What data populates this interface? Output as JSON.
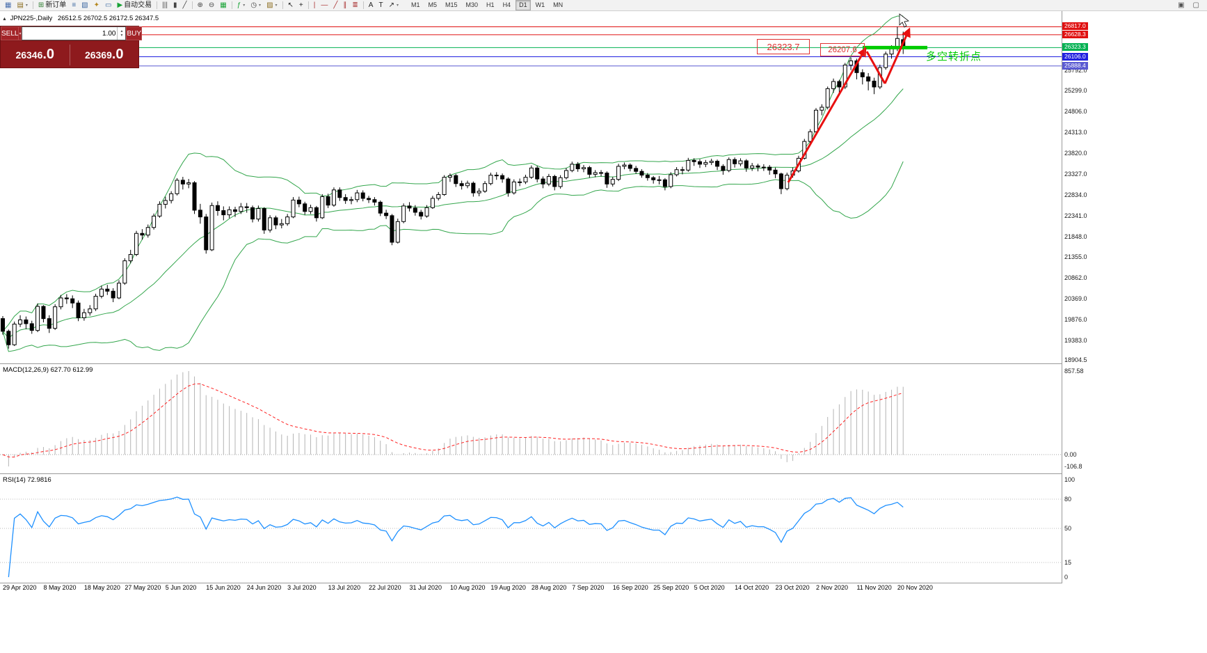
{
  "toolbar": {
    "items": [
      {
        "name": "new-chart",
        "glyph": "▦",
        "color": "#4a6fae"
      },
      {
        "name": "profiles",
        "glyph": "▤",
        "color": "#8c6d1f",
        "caret": true
      },
      {
        "type": "sep"
      },
      {
        "name": "new-order",
        "glyph": "⊞",
        "color": "#2f7d32",
        "label": "新订单"
      },
      {
        "name": "market-watch",
        "glyph": "≡",
        "color": "#3b66a0"
      },
      {
        "name": "data-window",
        "glyph": "▧",
        "color": "#3b66a0"
      },
      {
        "name": "navigator",
        "glyph": "✦",
        "color": "#b5871f"
      },
      {
        "name": "terminal",
        "glyph": "▭",
        "color": "#3b66a0"
      },
      {
        "name": "autotrading",
        "glyph": "▶",
        "color": "#18a335",
        "label": "自动交易"
      },
      {
        "type": "sep"
      },
      {
        "name": "chart-bars",
        "glyph": "|||",
        "color": "#444"
      },
      {
        "name": "chart-candles",
        "glyph": "▮",
        "color": "#444"
      },
      {
        "name": "chart-line",
        "glyph": "╱",
        "color": "#444"
      },
      {
        "type": "sep"
      },
      {
        "name": "zoom-in",
        "glyph": "⊕",
        "color": "#444"
      },
      {
        "name": "zoom-out",
        "glyph": "⊖",
        "color": "#444"
      },
      {
        "name": "tile-windows",
        "glyph": "▦",
        "color": "#18a335"
      },
      {
        "type": "sep"
      },
      {
        "name": "indicators",
        "glyph": "ƒ",
        "color": "#18a335",
        "caret": true
      },
      {
        "name": "periods",
        "glyph": "◷",
        "color": "#444",
        "caret": true
      },
      {
        "name": "templates",
        "glyph": "▨",
        "color": "#8c6d1f",
        "caret": true
      },
      {
        "type": "sep"
      },
      {
        "name": "cursor",
        "glyph": "↖",
        "color": "#222"
      },
      {
        "name": "crosshair",
        "glyph": "+",
        "color": "#222"
      },
      {
        "type": "sep"
      },
      {
        "name": "vertical-line",
        "glyph": "|",
        "color": "#a33"
      },
      {
        "name": "horizontal-line",
        "glyph": "—",
        "color": "#a33"
      },
      {
        "name": "trendline",
        "glyph": "╱",
        "color": "#a33"
      },
      {
        "name": "equidistant-channel",
        "glyph": "∥",
        "color": "#a33"
      },
      {
        "name": "fibonacci",
        "glyph": "≣",
        "color": "#a33"
      },
      {
        "type": "sep"
      },
      {
        "name": "text",
        "glyph": "A",
        "color": "#222"
      },
      {
        "name": "text-label",
        "glyph": "T",
        "color": "#222"
      },
      {
        "name": "arrows-tool",
        "glyph": "↗",
        "color": "#222",
        "caret": true
      }
    ],
    "timeframes": {
      "list": [
        "M1",
        "M5",
        "M15",
        "M30",
        "H1",
        "H4",
        "D1",
        "W1",
        "MN"
      ],
      "active": "D1"
    },
    "right_items": [
      {
        "name": "dock-window",
        "glyph": "▣",
        "color": "#555"
      },
      {
        "name": "new-window",
        "glyph": "▢",
        "color": "#555"
      }
    ]
  },
  "symbol_bar": {
    "marker": "▲",
    "title": "JPN225-,Daily",
    "ohlc": "26512.5 26702.5 26172.5 26347.5"
  },
  "trade_panel": {
    "sell_label": "SELL",
    "buy_label": "BUY",
    "volume": "1.00",
    "sell_price": "26346",
    "sell_price_dec": ".0",
    "buy_price": "26369",
    "buy_price_dec": ".0"
  },
  "macd": {
    "label": "MACD(12,26,9) 627.70 612.99",
    "fast": 12,
    "slow": 26,
    "signal": 9,
    "max_label": "857.58",
    "zero_label": "0.00",
    "min_label": "-106.8"
  },
  "rsi": {
    "label": "RSI(14) 72.9816",
    "period": 14,
    "levels": [
      "100",
      "80",
      "50",
      "15",
      "0"
    ],
    "level_values": [
      100,
      80,
      50,
      15,
      0
    ],
    "dashed_levels": [
      80,
      50,
      15
    ]
  },
  "colors": {
    "bollinger": "#33a64c",
    "macd_hist": "#b4b4b4",
    "macd_signal": "#ff2020",
    "rsi_line": "#1E90FF",
    "candle_up": "#ffffff",
    "candle_down": "#000000",
    "candle_border": "#000000"
  },
  "chart_data": {
    "type": "candlestick",
    "symbol": "JPN225-",
    "timeframe": "Daily",
    "ohlc_current": {
      "open": 26512.5,
      "high": 26702.5,
      "low": 26172.5,
      "close": 26347.5
    },
    "bollinger_period": 20,
    "bars_per_label": 7,
    "price_axis_ticks": [
      "25792.0",
      "25299.0",
      "24806.0",
      "24313.0",
      "23820.0",
      "23327.0",
      "22834.0",
      "22341.0",
      "21848.0",
      "21355.0",
      "20862.0",
      "20369.0",
      "19876.0",
      "19383.0"
    ],
    "price_axis_edge": "18904.5",
    "price_lines": [
      {
        "price": 26817.0,
        "label": "26817.0",
        "color": "#e01010"
      },
      {
        "price": 26628.3,
        "label": "26628.3",
        "color": "#e01010"
      },
      {
        "price": 26323.3,
        "label": "26323.3",
        "color": "#00b050"
      },
      {
        "price": 26106.0,
        "label": "26106.0",
        "color": "#2020e0"
      },
      {
        "price": 25888.4,
        "label": "25888.4",
        "color": "#5a5ad2"
      }
    ],
    "dates": [
      "29 Apr 2020",
      "8 May 2020",
      "18 May 2020",
      "27 May 2020",
      "5 Jun 2020",
      "15 Jun 2020",
      "24 Jun 2020",
      "3 Jul 2020",
      "13 Jul 2020",
      "22 Jul 2020",
      "31 Jul 2020",
      "10 Aug 2020",
      "19 Aug 2020",
      "28 Aug 2020",
      "7 Sep 2020",
      "16 Sep 2020",
      "25 Sep 2020",
      "5 Oct 2020",
      "14 Oct 2020",
      "23 Oct 2020",
      "2 Nov 2020",
      "11 Nov 2020",
      "20 Nov 2020"
    ],
    "annotations": {
      "price_box_1": "26323.7",
      "price_box_2": "26207.6",
      "note_text": "多空转折点",
      "note_color": "#00cc00",
      "support_line_color": "#00cc00",
      "arrow_color": "#e81010"
    },
    "candles": [
      [
        19900,
        19960,
        19520,
        19600
      ],
      [
        19600,
        19640,
        19190,
        19280
      ],
      [
        19280,
        19830,
        19250,
        19770
      ],
      [
        19770,
        19980,
        19700,
        19870
      ],
      [
        19870,
        19950,
        19650,
        19780
      ],
      [
        19780,
        19850,
        19540,
        19620
      ],
      [
        19620,
        20260,
        19580,
        20190
      ],
      [
        20190,
        20220,
        19810,
        19900
      ],
      [
        19900,
        19980,
        19560,
        19670
      ],
      [
        19670,
        20240,
        19630,
        20180
      ],
      [
        20180,
        20460,
        20120,
        20390
      ],
      [
        20390,
        20480,
        20250,
        20370
      ],
      [
        20370,
        20450,
        20150,
        20270
      ],
      [
        20270,
        20330,
        19840,
        19920
      ],
      [
        19920,
        20130,
        19850,
        20040
      ],
      [
        20040,
        20220,
        19970,
        20130
      ],
      [
        20130,
        20490,
        20080,
        20430
      ],
      [
        20430,
        20680,
        20380,
        20600
      ],
      [
        20600,
        20700,
        20460,
        20550
      ],
      [
        20550,
        20620,
        20290,
        20390
      ],
      [
        20390,
        20810,
        20360,
        20740
      ],
      [
        20740,
        21330,
        20700,
        21270
      ],
      [
        21270,
        21530,
        21210,
        21420
      ],
      [
        21420,
        21980,
        21380,
        21920
      ],
      [
        21920,
        22020,
        21770,
        21880
      ],
      [
        21880,
        22130,
        21820,
        22060
      ],
      [
        22060,
        22390,
        22010,
        22330
      ],
      [
        22330,
        22680,
        22290,
        22610
      ],
      [
        22610,
        22790,
        22510,
        22700
      ],
      [
        22700,
        22920,
        22630,
        22860
      ],
      [
        22860,
        23230,
        22820,
        23180
      ],
      [
        23180,
        23260,
        22960,
        23090
      ],
      [
        23090,
        23210,
        22990,
        23120
      ],
      [
        23120,
        23160,
        22380,
        22470
      ],
      [
        22470,
        22620,
        22150,
        22310
      ],
      [
        22310,
        22380,
        21440,
        21530
      ],
      [
        21530,
        22650,
        21500,
        22580
      ],
      [
        22580,
        22680,
        22340,
        22460
      ],
      [
        22460,
        22560,
        22230,
        22360
      ],
      [
        22360,
        22560,
        22280,
        22480
      ],
      [
        22480,
        22550,
        22310,
        22440
      ],
      [
        22440,
        22640,
        22380,
        22550
      ],
      [
        22550,
        22640,
        22410,
        22530
      ],
      [
        22530,
        22580,
        22180,
        22260
      ],
      [
        22260,
        22580,
        22200,
        22510
      ],
      [
        22510,
        22540,
        21910,
        22000
      ],
      [
        22000,
        22350,
        21940,
        22290
      ],
      [
        22290,
        22340,
        22020,
        22120
      ],
      [
        22120,
        22260,
        22040,
        22150
      ],
      [
        22150,
        22380,
        22100,
        22310
      ],
      [
        22310,
        22780,
        22280,
        22710
      ],
      [
        22710,
        22790,
        22540,
        22620
      ],
      [
        22620,
        22670,
        22360,
        22440
      ],
      [
        22440,
        22600,
        22380,
        22530
      ],
      [
        22530,
        22570,
        22200,
        22290
      ],
      [
        22290,
        22850,
        22260,
        22790
      ],
      [
        22790,
        22860,
        22520,
        22590
      ],
      [
        22590,
        23010,
        22550,
        22950
      ],
      [
        22950,
        23010,
        22690,
        22770
      ],
      [
        22770,
        22850,
        22620,
        22700
      ],
      [
        22700,
        22790,
        22610,
        22720
      ],
      [
        22720,
        22950,
        22660,
        22880
      ],
      [
        22880,
        22940,
        22680,
        22750
      ],
      [
        22750,
        22810,
        22640,
        22720
      ],
      [
        22720,
        22780,
        22580,
        22660
      ],
      [
        22660,
        22700,
        22330,
        22400
      ],
      [
        22400,
        22480,
        22260,
        22340
      ],
      [
        22340,
        22380,
        21640,
        21710
      ],
      [
        21710,
        22270,
        21680,
        22200
      ],
      [
        22200,
        22630,
        22160,
        22570
      ],
      [
        22570,
        22660,
        22440,
        22520
      ],
      [
        22520,
        22590,
        22340,
        22420
      ],
      [
        22420,
        22480,
        22250,
        22330
      ],
      [
        22330,
        22590,
        22290,
        22530
      ],
      [
        22530,
        22810,
        22500,
        22750
      ],
      [
        22750,
        22900,
        22700,
        22840
      ],
      [
        22840,
        23300,
        22810,
        23250
      ],
      [
        23250,
        23340,
        23140,
        23290
      ],
      [
        23290,
        23330,
        23020,
        23100
      ],
      [
        23100,
        23170,
        22960,
        23050
      ],
      [
        23050,
        23170,
        22990,
        23110
      ],
      [
        23110,
        23150,
        22790,
        22880
      ],
      [
        22880,
        22990,
        22800,
        22920
      ],
      [
        22920,
        23160,
        22880,
        23100
      ],
      [
        23100,
        23360,
        23060,
        23300
      ],
      [
        23300,
        23370,
        23190,
        23290
      ],
      [
        23290,
        23340,
        23120,
        23210
      ],
      [
        23210,
        23250,
        22790,
        22880
      ],
      [
        22880,
        23200,
        22840,
        23140
      ],
      [
        23140,
        23220,
        23040,
        23140
      ],
      [
        23140,
        23310,
        23090,
        23250
      ],
      [
        23250,
        23530,
        23210,
        23470
      ],
      [
        23470,
        23520,
        23130,
        23210
      ],
      [
        23210,
        23270,
        22990,
        23090
      ],
      [
        23090,
        23330,
        23040,
        23270
      ],
      [
        23270,
        23310,
        22940,
        23030
      ],
      [
        23030,
        23300,
        22980,
        23240
      ],
      [
        23240,
        23470,
        23200,
        23410
      ],
      [
        23410,
        23620,
        23370,
        23560
      ],
      [
        23560,
        23610,
        23380,
        23450
      ],
      [
        23450,
        23540,
        23370,
        23480
      ],
      [
        23480,
        23520,
        23240,
        23320
      ],
      [
        23320,
        23420,
        23250,
        23360
      ],
      [
        23360,
        23420,
        23270,
        23350
      ],
      [
        23350,
        23390,
        23000,
        23090
      ],
      [
        23090,
        23260,
        23030,
        23200
      ],
      [
        23200,
        23570,
        23160,
        23510
      ],
      [
        23510,
        23600,
        23440,
        23540
      ],
      [
        23540,
        23580,
        23390,
        23460
      ],
      [
        23460,
        23520,
        23330,
        23390
      ],
      [
        23390,
        23440,
        23240,
        23300
      ],
      [
        23300,
        23350,
        23170,
        23240
      ],
      [
        23240,
        23280,
        23100,
        23190
      ],
      [
        23190,
        23280,
        23080,
        23190
      ],
      [
        23190,
        23230,
        22940,
        23030
      ],
      [
        23030,
        23370,
        22990,
        23310
      ],
      [
        23310,
        23490,
        23270,
        23430
      ],
      [
        23430,
        23500,
        23320,
        23420
      ],
      [
        23420,
        23710,
        23380,
        23650
      ],
      [
        23650,
        23700,
        23520,
        23620
      ],
      [
        23620,
        23680,
        23470,
        23560
      ],
      [
        23560,
        23660,
        23490,
        23600
      ],
      [
        23600,
        23690,
        23540,
        23630
      ],
      [
        23630,
        23670,
        23420,
        23510
      ],
      [
        23510,
        23560,
        23310,
        23410
      ],
      [
        23410,
        23720,
        23370,
        23670
      ],
      [
        23670,
        23720,
        23480,
        23570
      ],
      [
        23570,
        23700,
        23510,
        23640
      ],
      [
        23640,
        23680,
        23380,
        23470
      ],
      [
        23470,
        23590,
        23400,
        23520
      ],
      [
        23520,
        23570,
        23390,
        23490
      ],
      [
        23490,
        23560,
        23400,
        23490
      ],
      [
        23490,
        23540,
        23310,
        23420
      ],
      [
        23420,
        23480,
        23230,
        23330
      ],
      [
        23330,
        23360,
        22850,
        22980
      ],
      [
        22980,
        23360,
        22940,
        23300
      ],
      [
        23300,
        23480,
        23240,
        23400
      ],
      [
        23400,
        23760,
        23360,
        23700
      ],
      [
        23700,
        24160,
        23670,
        24100
      ],
      [
        24100,
        24390,
        24030,
        24330
      ],
      [
        24330,
        24890,
        24300,
        24840
      ],
      [
        24840,
        24980,
        24720,
        24910
      ],
      [
        24910,
        25400,
        24860,
        25350
      ],
      [
        25350,
        25590,
        25250,
        25520
      ],
      [
        25520,
        25560,
        25190,
        25390
      ],
      [
        25390,
        25960,
        25340,
        25910
      ],
      [
        25910,
        26090,
        25790,
        26010
      ],
      [
        26010,
        26060,
        25570,
        25730
      ],
      [
        25730,
        25810,
        25450,
        25630
      ],
      [
        25630,
        25720,
        25310,
        25530
      ],
      [
        25530,
        25610,
        25220,
        25390
      ],
      [
        25390,
        25920,
        25340,
        25850
      ],
      [
        25850,
        26230,
        25800,
        26170
      ],
      [
        26170,
        26380,
        26060,
        26300
      ],
      [
        26300,
        26817,
        26240,
        26540
      ],
      [
        26512,
        26702,
        26172,
        26348
      ]
    ]
  }
}
